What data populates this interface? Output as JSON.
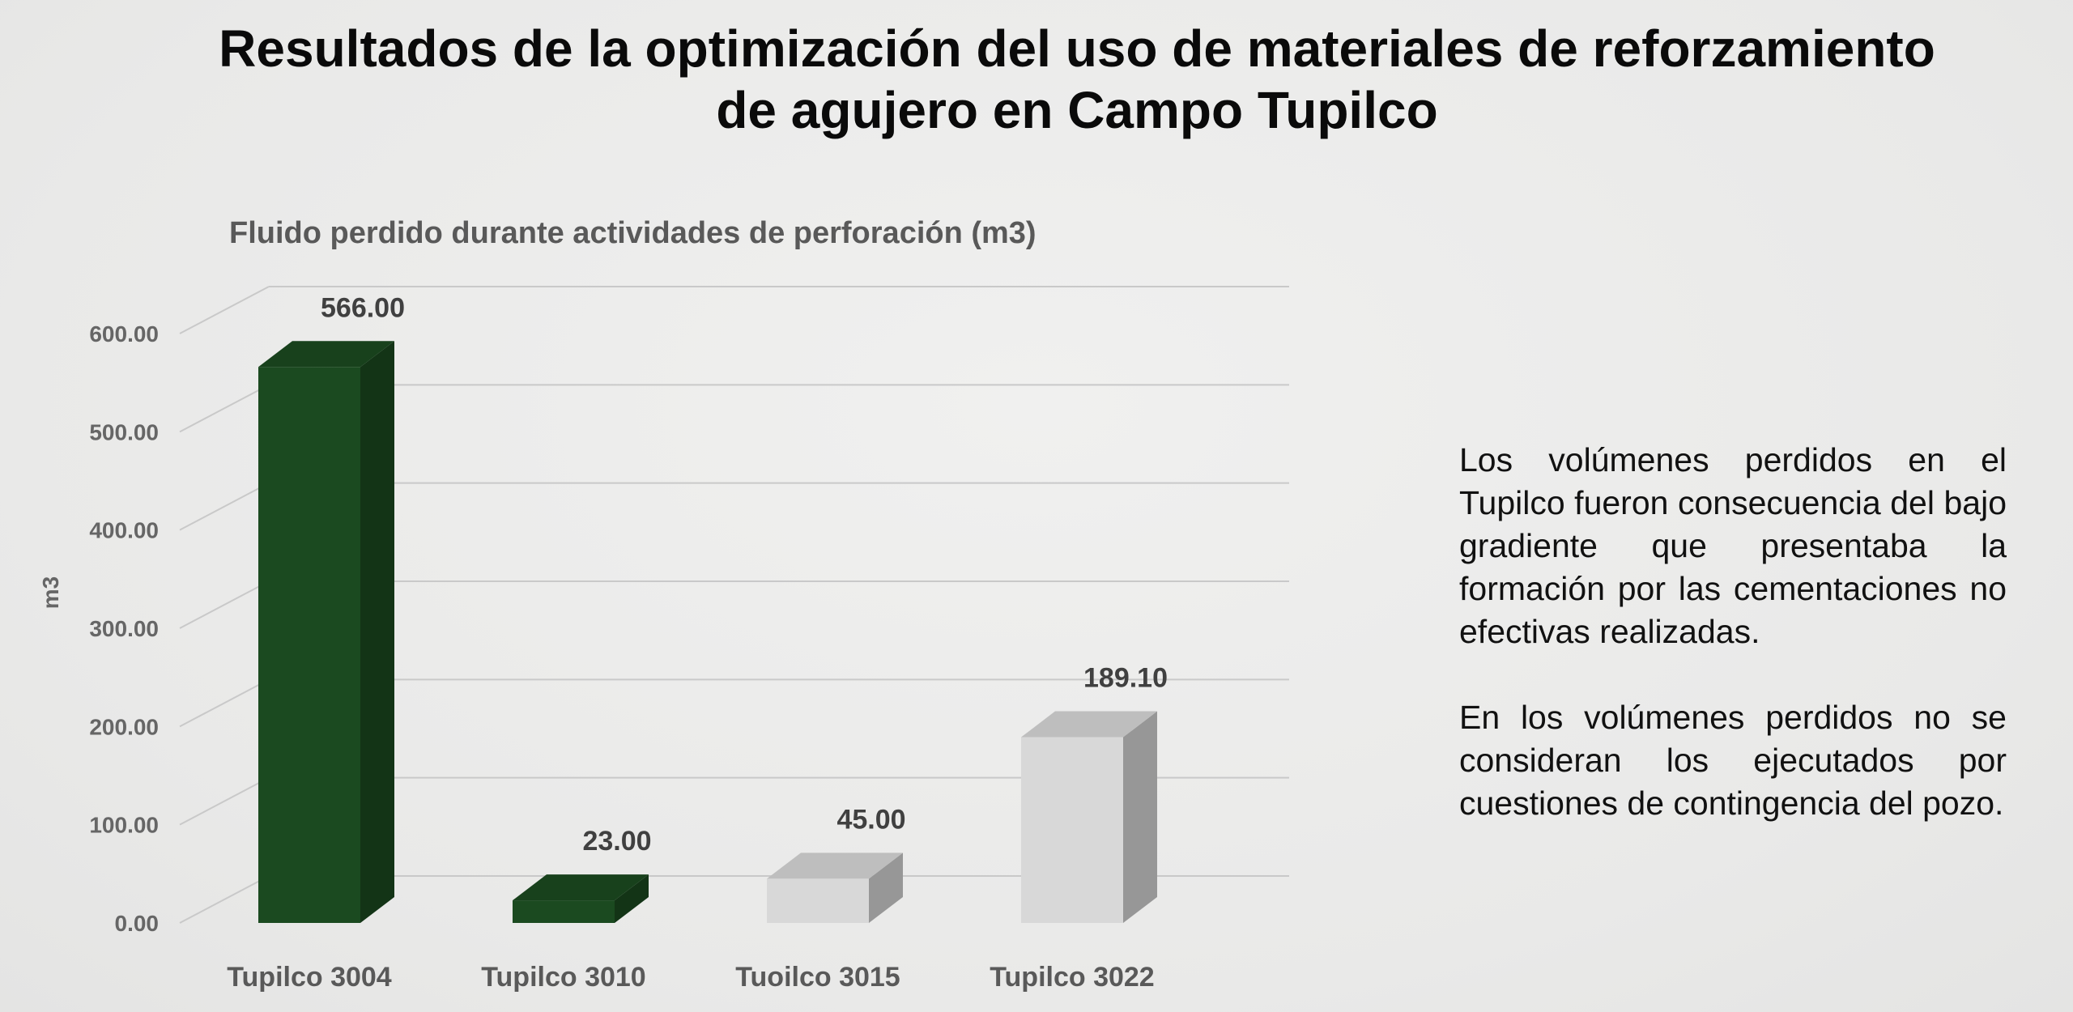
{
  "page": {
    "title_line1": "Resultados de la optimización del uso de materiales de reforzamiento",
    "title_line2": "de agujero en Campo Tupilco"
  },
  "notes": {
    "paragraph1": "Los volúmenes perdidos en el Tupilco fueron consecuencia del bajo gradiente que presentaba la formación por las cementaciones no efectivas realizadas.",
    "paragraph2": "En los volúmenes perdidos no se consideran los ejecutados por cuestiones de contingencia del pozo."
  },
  "chart_data": {
    "type": "bar",
    "title": "Fluido perdido durante actividades de perforación (m3)",
    "xlabel": "",
    "ylabel": "m3",
    "ylim": [
      0,
      600
    ],
    "yticks": [
      "0.00",
      "100.00",
      "200.00",
      "300.00",
      "400.00",
      "500.00",
      "600.00"
    ],
    "grid": true,
    "categories": [
      "Tupilco 3004",
      "Tupilco 3010",
      "Tuoilco 3015",
      "Tupilco 3022"
    ],
    "values": [
      566.0,
      23.0,
      45.0,
      189.1
    ],
    "data_labels": [
      "566.00",
      "23.00",
      "45.00",
      "189.10"
    ],
    "bar_colors": [
      "#1b4a20",
      "#1b4a20",
      "#d8d8d8",
      "#d8d8d8"
    ],
    "style": "3d-column"
  }
}
